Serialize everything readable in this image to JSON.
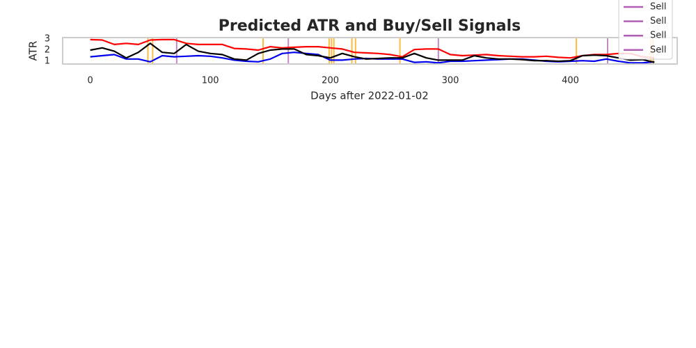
{
  "chart_data": {
    "type": "line",
    "title": "Predicted ATR and Buy/Sell Signals",
    "x_label": "Days after 2022-01-02",
    "y_label": "ATR",
    "x": [
      0,
      10,
      20,
      30,
      40,
      50,
      60,
      70,
      80,
      90,
      100,
      110,
      120,
      130,
      140,
      150,
      160,
      170,
      180,
      190,
      200,
      210,
      220,
      230,
      240,
      250,
      260,
      270,
      280,
      290,
      300,
      310,
      320,
      330,
      340,
      350,
      360,
      370,
      380,
      390,
      400,
      410,
      420,
      430,
      440,
      450,
      460,
      470
    ],
    "series": [
      {
        "color": "#ff0000",
        "values": [
          2.94,
          2.9,
          2.5,
          2.6,
          2.5,
          2.9,
          2.94,
          2.94,
          2.6,
          2.5,
          2.5,
          2.5,
          2.15,
          2.1,
          2.0,
          2.3,
          2.2,
          2.25,
          2.3,
          2.3,
          2.2,
          2.1,
          1.8,
          1.75,
          1.7,
          1.6,
          1.4,
          2.05,
          2.1,
          2.1,
          1.6,
          1.5,
          1.55,
          1.6,
          1.5,
          1.45,
          1.4,
          1.4,
          1.45,
          1.35,
          1.3,
          1.5,
          1.6,
          1.6,
          1.7,
          1.7,
          1.4,
          1.3
        ]
      },
      {
        "color": "#0000ee",
        "values": [
          1.4,
          1.5,
          1.6,
          1.2,
          1.2,
          0.95,
          1.5,
          1.4,
          1.45,
          1.5,
          1.45,
          1.3,
          1.1,
          1.0,
          0.95,
          1.2,
          1.7,
          1.8,
          1.7,
          1.6,
          1.1,
          1.1,
          1.2,
          1.25,
          1.2,
          1.2,
          1.2,
          0.9,
          0.95,
          0.85,
          1.0,
          1.0,
          1.05,
          1.1,
          1.15,
          1.2,
          1.2,
          1.1,
          1.0,
          0.95,
          1.0,
          1.05,
          1.0,
          1.2,
          1.0,
          0.85,
          0.85,
          0.95
        ]
      },
      {
        "color": "#000000",
        "values": [
          2.0,
          2.2,
          1.9,
          1.3,
          1.8,
          2.6,
          1.8,
          1.7,
          2.5,
          1.9,
          1.7,
          1.6,
          1.2,
          1.1,
          1.7,
          2.0,
          2.1,
          2.1,
          1.6,
          1.5,
          1.3,
          1.7,
          1.4,
          1.2,
          1.25,
          1.3,
          1.3,
          1.7,
          1.3,
          1.1,
          1.1,
          1.1,
          1.5,
          1.3,
          1.2,
          1.2,
          1.15,
          1.05,
          1.05,
          1.0,
          1.05,
          1.5,
          1.55,
          1.5,
          1.3,
          1.1,
          1.15,
          0.9
        ]
      }
    ],
    "buy_signals": {
      "color": "#ffa500",
      "x": [
        48,
        52,
        144,
        199,
        201,
        203,
        218,
        221,
        258,
        405,
        467,
        469
      ]
    },
    "sell_signals": {
      "color": "#b05fb5",
      "x": [
        72,
        165,
        290,
        431
      ]
    },
    "legend": [
      "Sell",
      "Sell",
      "Sell",
      "Sell"
    ],
    "xlim": [
      -23,
      489
    ],
    "xticks": [
      0,
      100,
      200,
      300,
      400
    ],
    "ylim": [
      0.75,
      3.12
    ],
    "yticks": [
      1,
      2,
      3
    ],
    "legend_position": "upper right"
  }
}
